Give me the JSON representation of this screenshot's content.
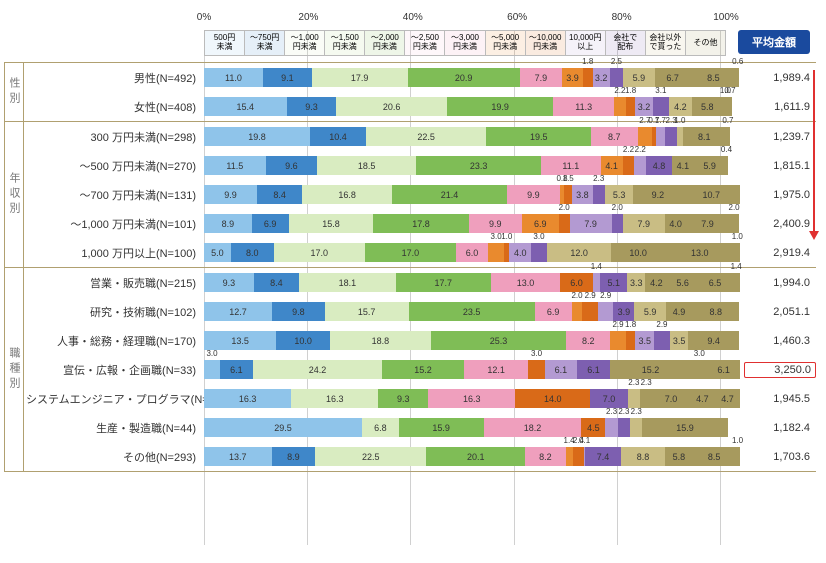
{
  "avg_header": "平均金額",
  "axis": {
    "ticks": [
      0,
      20,
      40,
      60,
      80,
      100
    ],
    "suffix": "%"
  },
  "segments": [
    {
      "label": "500円\n未満",
      "color": "#8fc4ea"
    },
    {
      "label": "～750円\n未満",
      "color": "#3f87c9"
    },
    {
      "label": "～1,000\n円未満",
      "color": "#d9ecc1"
    },
    {
      "label": "～1,500\n円未満",
      "color": "#b7da90"
    },
    {
      "label": "～2,000\n円未満",
      "color": "#7fbd56"
    },
    {
      "label": "～2,500\n円未満",
      "color": "#f6c4d6"
    },
    {
      "label": "～3,000\n円未満",
      "color": "#ef9fbd"
    },
    {
      "label": "～5,000\n円未満",
      "color": "#e98a2e"
    },
    {
      "label": "～10,000\n円未満",
      "color": "#d96a18"
    },
    {
      "label": "10,000円\n以上",
      "color": "#b39ad2"
    },
    {
      "label": "会社で\n配布",
      "color": "#7d5fb0"
    },
    {
      "label": "会社以外\nで貰った",
      "color": "#c9bd84"
    },
    {
      "label": "その他",
      "color": "#a79a5e"
    }
  ],
  "tiny_threshold": 3.2,
  "groups": [
    {
      "label": "性別",
      "rows": [
        {
          "label": "男性(N=492)",
          "avg": "1,989.4",
          "v": [
            11.0,
            9.1,
            17.9,
            null,
            20.9,
            null,
            7.9,
            3.9,
            1.8,
            3.2,
            2.5,
            5.9,
            6.7,
            8.5,
            0.6
          ]
        },
        {
          "label": "女性(N=408)",
          "avg": "1,611.9",
          "v": [
            15.4,
            9.3,
            20.6,
            null,
            19.9,
            null,
            11.3,
            2.2,
            1.8,
            3.2,
            3.1,
            4.2,
            5.8,
            1.0,
            0.7
          ]
        }
      ]
    },
    {
      "label": "年収別",
      "rows": [
        {
          "label": "300 万円未満(N=298)",
          "avg": "1,239.7",
          "v": [
            19.8,
            10.4,
            22.5,
            null,
            19.5,
            null,
            8.7,
            2.7,
            0.7,
            1.7,
            2.3,
            1.0,
            8.1,
            0.7,
            null
          ]
        },
        {
          "label": "～500 万円未満(N=270)",
          "avg": "1,815.1",
          "v": [
            11.5,
            9.6,
            18.5,
            null,
            23.3,
            null,
            11.1,
            4.1,
            2.2,
            2.2,
            4.8,
            null,
            4.1,
            5.9,
            0.4
          ]
        },
        {
          "label": "～700 万円未満(N=131)",
          "avg": "1,975.0",
          "v": [
            9.9,
            8.4,
            16.8,
            null,
            21.4,
            null,
            9.9,
            0.8,
            1.5,
            3.8,
            2.3,
            5.3,
            9.2,
            null,
            10.7
          ]
        },
        {
          "label": "～1,000 万円未満(N=101)",
          "avg": "2,400.9",
          "v": [
            8.9,
            6.9,
            15.8,
            null,
            17.8,
            null,
            9.9,
            6.9,
            2.0,
            7.9,
            2.0,
            7.9,
            4.0,
            null,
            7.9,
            2.0
          ]
        },
        {
          "label": "1,000 万円以上(N=100)",
          "avg": "2,919.4",
          "v": [
            5.0,
            8.0,
            17.0,
            null,
            17.0,
            null,
            6.0,
            3.0,
            1.0,
            4.0,
            3.0,
            12.0,
            null,
            10.0,
            null,
            13.0,
            1.0
          ]
        }
      ]
    },
    {
      "label": "職種別",
      "rows": [
        {
          "label": "営業・販売職(N=215)",
          "avg": "1,994.0",
          "v": [
            9.3,
            8.4,
            18.1,
            null,
            17.7,
            null,
            13.0,
            null,
            6.0,
            1.4,
            5.1,
            3.3,
            4.2,
            5.6,
            6.5,
            1.4
          ]
        },
        {
          "label": "研究・技術職(N=102)",
          "avg": "2,051.1",
          "v": [
            12.7,
            9.8,
            15.7,
            null,
            23.5,
            null,
            6.9,
            2.0,
            2.9,
            2.9,
            3.9,
            5.9,
            4.9,
            null,
            8.8
          ]
        },
        {
          "label": "人事・総務・経理職(N=170)",
          "avg": "1,460.3",
          "v": [
            13.5,
            10.0,
            18.8,
            null,
            25.3,
            null,
            8.2,
            2.9,
            1.8,
            3.5,
            2.9,
            3.5,
            null,
            null,
            9.4
          ]
        },
        {
          "label": "宣伝・広報・企画職(N=33)",
          "avg": "3,250.0",
          "hl": true,
          "v": [
            3.0,
            6.1,
            24.2,
            null,
            15.2,
            null,
            12.1,
            null,
            3.0,
            6.1,
            6.1,
            null,
            15.2,
            null,
            3.0,
            6.1
          ]
        },
        {
          "label": "システムエンジニア・プログラマ(N=43)",
          "avg": "1,945.5",
          "v": [
            16.3,
            null,
            16.3,
            null,
            9.3,
            null,
            16.3,
            null,
            14.0,
            null,
            7.0,
            2.3,
            2.3,
            7.0,
            4.7,
            null,
            4.7
          ]
        },
        {
          "label": "生産・製造職(N=44)",
          "avg": "1,182.4",
          "v": [
            29.5,
            null,
            6.8,
            null,
            15.9,
            null,
            18.2,
            null,
            4.5,
            2.3,
            2.3,
            2.3,
            null,
            null,
            15.9,
            null
          ]
        },
        {
          "label": "その他(N=293)",
          "avg": "1,703.6",
          "v": [
            13.7,
            8.9,
            22.5,
            null,
            20.1,
            null,
            8.2,
            1.4,
            2.4,
            0.1,
            7.4,
            8.8,
            5.8,
            null,
            8.5,
            1.0
          ]
        }
      ]
    }
  ]
}
